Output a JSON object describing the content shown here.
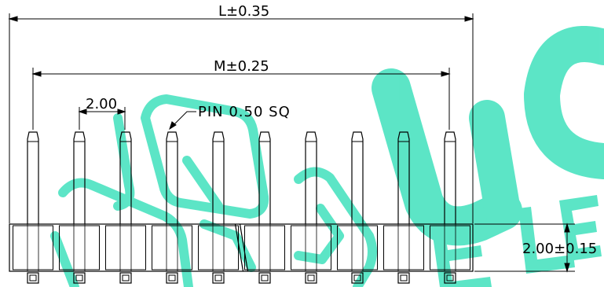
{
  "dimensions": {
    "overall_length": "L±0.35",
    "outer_pin_span": "M±0.25",
    "pitch": "2.00",
    "pin_size": "PIN 0.50 SQ",
    "body_height": "2.00±0.15"
  },
  "pin_count": 10,
  "watermark": {
    "letters": "UCELE",
    "color": "#4fe3c2"
  },
  "colors": {
    "line": "#000000",
    "background": "#ffffff"
  }
}
